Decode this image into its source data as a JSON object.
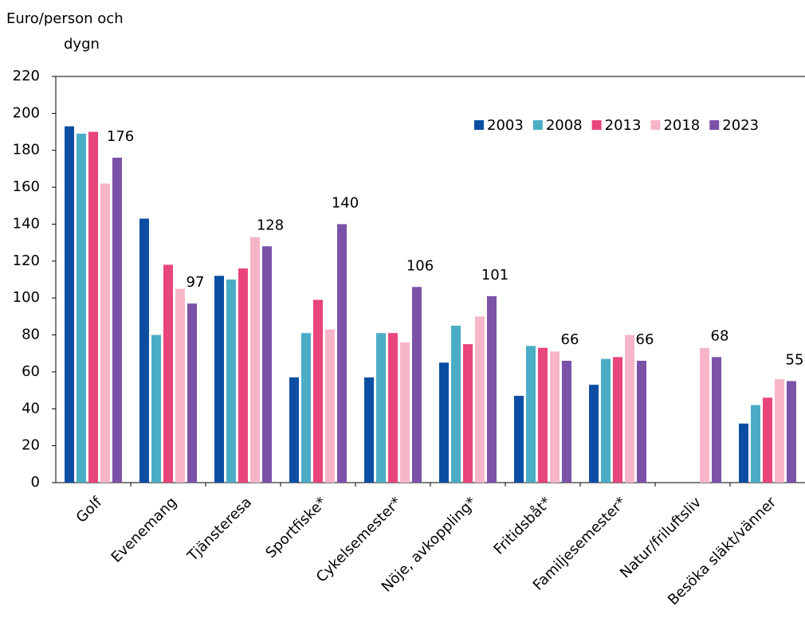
{
  "chart_data": {
    "type": "bar",
    "ylabel": [
      "Euro/person och",
      "dygn"
    ],
    "categories": [
      "Golf",
      "Evenemang",
      "Tjänsteresa",
      "Sportfiske*",
      "Cykelsemester*",
      "Nöje, avkoppling*",
      "Fritidsbåt*",
      "Familjesemester*",
      "Natur/friluftsliv",
      "Besöka släkt/vänner"
    ],
    "series": [
      {
        "name": "2003",
        "color": "#0b4ea2",
        "values": [
          193,
          143,
          112,
          57,
          57,
          65,
          47,
          53,
          null,
          32
        ]
      },
      {
        "name": "2008",
        "color": "#4bacc6",
        "values": [
          189,
          80,
          110,
          81,
          81,
          85,
          74,
          67,
          null,
          42
        ]
      },
      {
        "name": "2013",
        "color": "#e8457a",
        "values": [
          190,
          118,
          116,
          99,
          81,
          75,
          73,
          68,
          null,
          46
        ]
      },
      {
        "name": "2018",
        "color": "#f7b6c8",
        "values": [
          162,
          105,
          133,
          83,
          76,
          90,
          71,
          80,
          73,
          56
        ]
      },
      {
        "name": "2023",
        "color": "#7b52a8",
        "values": [
          176,
          97,
          128,
          140,
          106,
          101,
          66,
          66,
          68,
          55
        ],
        "show_values": true
      }
    ],
    "ylim": [
      0,
      220
    ],
    "yticks": [
      0,
      20,
      40,
      60,
      80,
      100,
      120,
      140,
      160,
      180,
      200,
      220
    ],
    "legend": "top-right"
  }
}
